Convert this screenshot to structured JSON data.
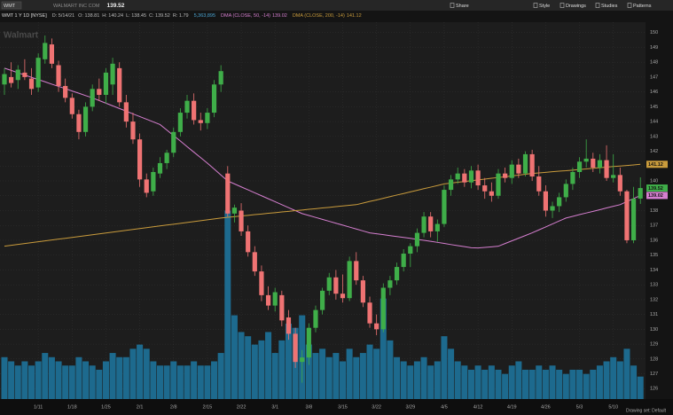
{
  "toolbar": {
    "symbol": "WMT",
    "items": [
      "Share",
      "Style",
      "Drawings",
      "Studies",
      "Patterns"
    ]
  },
  "chart_data": {
    "type": "candlestick",
    "title": "WMT 1 Y 1D [NYSE]",
    "watermark": "Walmart",
    "company": "WALMART INC COM",
    "date_label": "D: 5/14/21",
    "ohlc_labels": [
      "O:",
      "H:",
      "L:",
      "C:",
      "R:"
    ],
    "range": 1.79,
    "volume_label": "5,363,895",
    "footer": "Drawing set: Default",
    "categories": [
      null,
      null,
      null,
      null,
      null,
      "1/11",
      null,
      null,
      null,
      null,
      "1/18",
      null,
      null,
      null,
      null,
      "1/25",
      null,
      null,
      null,
      null,
      "2/1",
      null,
      null,
      null,
      null,
      "2/8",
      null,
      null,
      null,
      null,
      "2/15",
      null,
      null,
      null,
      null,
      "2/22",
      null,
      null,
      null,
      null,
      "3/1",
      null,
      null,
      null,
      null,
      "3/8",
      null,
      null,
      null,
      null,
      "3/15",
      null,
      null,
      null,
      null,
      "3/22",
      null,
      null,
      null,
      null,
      "3/29",
      null,
      null,
      null,
      null,
      "4/5",
      null,
      null,
      null,
      null,
      "4/12",
      null,
      null,
      null,
      null,
      "4/19",
      null,
      null,
      null,
      null,
      "4/26",
      null,
      null,
      null,
      null,
      "5/3",
      null,
      null,
      null,
      null,
      "5/10",
      null,
      null,
      null,
      null
    ],
    "open": [
      146.5,
      147.0,
      146.8,
      147.3,
      146.9,
      146.3,
      148.2,
      149.2,
      147.8,
      146.4,
      145.6,
      144.5,
      143.3,
      145.0,
      146.2,
      145.8,
      146.5,
      147.6,
      145.3,
      144.0,
      142.8,
      140.1,
      139.3,
      140.5,
      141.2,
      141.9,
      143.3,
      144.6,
      145.4,
      144.1,
      143.9,
      144.6,
      146.5,
      140.5,
      137.8,
      138.0,
      136.6,
      135.2,
      133.9,
      132.3,
      131.6,
      132.3,
      130.8,
      129.7,
      127.8,
      128.1,
      130.1,
      131.3,
      132.6,
      133.5,
      132.4,
      132.1,
      134.6,
      133.3,
      131.8,
      130.4,
      130.0,
      132.8,
      133.3,
      134.2,
      135.1,
      135.6,
      136.5,
      137.6,
      136.6,
      137.1,
      139.4,
      140.1,
      140.5,
      139.9,
      140.7,
      139.7,
      139.3,
      139.0,
      140.5,
      140.2,
      141.1,
      140.5,
      141.8,
      140.3,
      139.3,
      138.0,
      138.3,
      138.9,
      139.8,
      140.6,
      141.3,
      141.5,
      140.9,
      141.4,
      140.2,
      140.4,
      139.3,
      136.0,
      138.81
    ],
    "high": [
      147.6,
      148.0,
      147.8,
      148.2,
      147.6,
      148.6,
      149.8,
      149.6,
      148.1,
      146.9,
      145.9,
      144.8,
      145.3,
      146.5,
      146.9,
      147.6,
      148.3,
      148.0,
      145.8,
      144.6,
      143.2,
      140.5,
      140.9,
      141.6,
      142.1,
      143.6,
      144.9,
      145.8,
      145.9,
      144.6,
      144.9,
      146.8,
      147.8,
      141.0,
      138.4,
      138.5,
      137.0,
      135.6,
      134.3,
      132.9,
      132.8,
      132.6,
      131.3,
      130.1,
      128.6,
      130.4,
      131.6,
      132.8,
      133.8,
      134.0,
      133.7,
      134.9,
      135.2,
      133.6,
      132.2,
      131.0,
      133.1,
      133.6,
      134.5,
      135.4,
      135.8,
      136.8,
      137.9,
      137.9,
      137.4,
      139.7,
      140.4,
      140.9,
      140.8,
      141.0,
      141.1,
      140.2,
      139.9,
      140.8,
      140.9,
      141.4,
      141.5,
      142.0,
      142.1,
      141.0,
      139.7,
      138.6,
      139.2,
      140.1,
      140.9,
      141.6,
      142.8,
      141.9,
      141.8,
      142.4,
      141.8,
      140.9,
      139.4,
      139.6,
      140.24
    ],
    "low": [
      145.8,
      146.3,
      146.2,
      146.8,
      145.8,
      146.0,
      147.9,
      147.6,
      146.0,
      145.3,
      144.2,
      142.8,
      143.0,
      144.7,
      145.4,
      145.2,
      145.8,
      145.0,
      143.6,
      142.5,
      139.6,
      138.9,
      139.0,
      140.2,
      140.8,
      141.6,
      143.0,
      144.2,
      143.8,
      143.4,
      143.5,
      144.3,
      146.0,
      137.6,
      137.2,
      136.3,
      134.9,
      133.6,
      131.9,
      131.3,
      131.2,
      130.2,
      129.3,
      127.4,
      126.4,
      127.6,
      129.8,
      131.0,
      132.3,
      132.0,
      131.8,
      131.9,
      133.0,
      131.5,
      130.1,
      129.6,
      129.8,
      132.3,
      133.0,
      133.9,
      134.2,
      135.2,
      136.2,
      136.2,
      135.9,
      136.9,
      139.0,
      139.8,
      139.6,
      139.5,
      139.4,
      138.8,
      138.6,
      138.8,
      139.9,
      139.8,
      140.2,
      140.3,
      140.0,
      139.0,
      137.6,
      137.5,
      137.9,
      138.6,
      139.4,
      140.2,
      140.9,
      140.6,
      140.5,
      140.0,
      139.9,
      139.0,
      135.8,
      135.8,
      138.45
    ],
    "close": [
      147.2,
      146.6,
      147.5,
      147.0,
      146.2,
      148.3,
      149.3,
      147.9,
      146.4,
      145.6,
      144.5,
      143.3,
      145.0,
      146.2,
      145.8,
      147.3,
      147.9,
      145.3,
      144.0,
      142.8,
      140.1,
      139.2,
      140.6,
      141.2,
      141.9,
      143.3,
      144.6,
      145.4,
      144.1,
      143.9,
      144.6,
      146.5,
      147.4,
      137.8,
      138.2,
      136.6,
      135.2,
      133.9,
      132.3,
      131.6,
      132.5,
      130.6,
      129.7,
      127.8,
      128.1,
      130.1,
      131.3,
      132.6,
      133.5,
      132.4,
      132.1,
      134.6,
      133.3,
      131.8,
      130.4,
      130.0,
      132.8,
      133.3,
      134.2,
      135.1,
      135.6,
      136.5,
      137.6,
      136.6,
      137.1,
      139.4,
      140.1,
      140.5,
      139.9,
      140.7,
      139.7,
      139.3,
      139.0,
      140.5,
      140.2,
      141.1,
      140.5,
      141.8,
      140.3,
      139.3,
      138.0,
      138.3,
      138.9,
      139.8,
      140.6,
      141.3,
      141.5,
      140.9,
      141.4,
      140.2,
      140.4,
      139.3,
      136.0,
      138.8,
      139.52
    ],
    "volume": [
      10000000,
      9000000,
      8000000,
      9000000,
      8000000,
      9000000,
      11000000,
      10000000,
      9000000,
      8000000,
      8000000,
      10000000,
      9000000,
      8000000,
      7000000,
      9000000,
      11000000,
      10000000,
      10000000,
      12000000,
      13000000,
      12000000,
      9000000,
      8000000,
      8000000,
      9000000,
      8000000,
      8000000,
      9000000,
      8000000,
      8000000,
      9000000,
      11000000,
      45000000,
      20000000,
      16000000,
      15000000,
      13000000,
      14000000,
      16000000,
      11000000,
      14000000,
      18000000,
      17000000,
      20000000,
      13000000,
      11000000,
      12000000,
      10000000,
      11000000,
      9000000,
      12000000,
      10000000,
      11000000,
      13000000,
      12000000,
      24000000,
      14000000,
      10000000,
      9000000,
      8000000,
      9000000,
      10000000,
      8000000,
      9000000,
      15000000,
      12000000,
      9000000,
      8000000,
      7000000,
      8000000,
      7000000,
      8000000,
      7000000,
      6000000,
      8000000,
      9000000,
      7000000,
      7000000,
      8000000,
      7000000,
      8000000,
      7000000,
      6000000,
      7000000,
      7000000,
      6000000,
      7000000,
      8000000,
      9000000,
      10000000,
      9000000,
      12000000,
      8000000,
      5363895
    ],
    "up_color": "#3fae49",
    "down_color": "#ef7373",
    "volume_color": "#1d6a8e",
    "vlim": [
      0,
      90000000
    ],
    "series": [
      {
        "name": "DMA (CLOSE, 50, -14)",
        "color": "#d67fd0",
        "values": [
          147.6,
          147.45,
          147.29,
          147.14,
          146.98,
          146.83,
          146.68,
          146.52,
          146.37,
          146.22,
          146.06,
          145.91,
          145.75,
          145.6,
          145.42,
          145.24,
          145.06,
          144.88,
          144.7,
          144.52,
          144.34,
          144.16,
          143.98,
          143.8,
          143.43,
          143.06,
          142.69,
          142.31,
          141.94,
          141.57,
          141.2,
          140.8,
          140.4,
          140.0,
          139.8,
          139.6,
          139.4,
          139.2,
          139.0,
          138.8,
          138.6,
          138.4,
          138.2,
          138.0,
          137.8,
          137.67,
          137.54,
          137.41,
          137.28,
          137.15,
          137.02,
          136.89,
          136.76,
          136.63,
          136.5,
          136.44,
          136.38,
          136.31,
          136.25,
          136.19,
          136.13,
          136.06,
          136.0,
          135.93,
          135.86,
          135.79,
          135.71,
          135.64,
          135.57,
          135.5,
          135.48,
          135.52,
          135.56,
          135.6,
          135.78,
          135.96,
          136.14,
          136.32,
          136.5,
          136.7,
          136.9,
          137.1,
          137.3,
          137.5,
          137.61,
          137.73,
          137.84,
          137.95,
          138.06,
          138.18,
          138.29,
          138.4,
          138.61,
          138.81,
          139.02
        ]
      },
      {
        "name": "DMA (CLOSE, 200, -14)",
        "color": "#c99b3c",
        "values": [
          135.6,
          135.66,
          135.72,
          135.78,
          135.84,
          135.9,
          135.96,
          136.02,
          136.08,
          136.13,
          136.19,
          136.25,
          136.31,
          136.37,
          136.43,
          136.49,
          136.55,
          136.61,
          136.67,
          136.73,
          136.79,
          136.85,
          136.91,
          136.97,
          137.03,
          137.08,
          137.14,
          137.2,
          137.26,
          137.32,
          137.38,
          137.44,
          137.5,
          137.55,
          137.59,
          137.64,
          137.68,
          137.73,
          137.77,
          137.82,
          137.86,
          137.91,
          137.95,
          138.0,
          138.04,
          138.09,
          138.13,
          138.18,
          138.22,
          138.27,
          138.31,
          138.36,
          138.4,
          138.51,
          138.62,
          138.72,
          138.83,
          138.94,
          139.05,
          139.15,
          139.26,
          139.37,
          139.48,
          139.58,
          139.69,
          139.8,
          139.85,
          139.91,
          139.96,
          140.02,
          140.07,
          140.12,
          140.18,
          140.23,
          140.28,
          140.34,
          140.39,
          140.45,
          140.5,
          140.54,
          140.58,
          140.62,
          140.66,
          140.69,
          140.73,
          140.77,
          140.81,
          140.85,
          140.89,
          140.93,
          140.97,
          141.0,
          141.04,
          141.08,
          141.12
        ]
      }
    ],
    "ylim": [
      125.3,
      150.7
    ],
    "yticks": [
      126,
      127,
      128,
      129,
      130,
      131,
      132,
      133,
      134,
      135,
      136,
      137,
      138,
      139,
      140,
      141,
      142,
      143,
      144,
      145,
      146,
      147,
      148,
      149,
      150
    ],
    "grid": true
  }
}
